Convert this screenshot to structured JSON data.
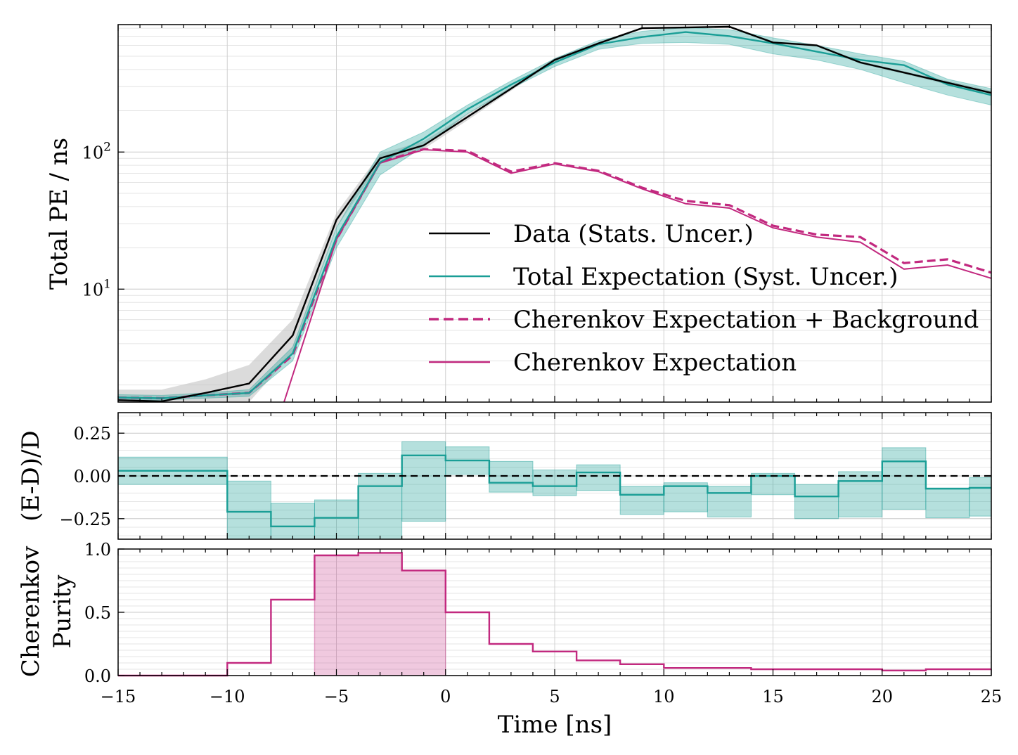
{
  "chart_data": [
    {
      "type": "line",
      "panel": "top",
      "ylabel": "Total PE / ns",
      "yscale": "log",
      "xlim": [
        -15,
        25
      ],
      "ylim": [
        1.5,
        850
      ],
      "ytick_labels": [
        "10^1",
        "10^2"
      ],
      "ytick_values": [
        10,
        100
      ],
      "grid": true,
      "legend_placement": "lower-right",
      "legend": [
        {
          "label": "Data (Stats. Uncer.)",
          "style": "solid",
          "color": "#000000"
        },
        {
          "label": "Total Expectation (Syst. Uncer.)",
          "style": "solid",
          "color": "#1a9e96"
        },
        {
          "label": "Cherenkov Expectation + Background",
          "style": "dashed",
          "color": "#c2297f"
        },
        {
          "label": "Cherenkov Expectation",
          "style": "solid",
          "color": "#c2297f"
        }
      ],
      "series": [
        {
          "name": "Data (Stats. Uncer.)",
          "color": "#000000",
          "x": [
            -15,
            -13,
            -11,
            -9,
            -7,
            -5,
            -3,
            -1,
            1,
            3,
            5,
            7,
            9,
            11,
            13,
            15,
            17,
            19,
            21,
            23,
            25
          ],
          "y": [
            1.55,
            1.52,
            1.75,
            2.05,
            4.6,
            32,
            90,
            112,
            180,
            290,
            470,
            620,
            800,
            810,
            820,
            630,
            600,
            450,
            380,
            320,
            270
          ],
          "band_low": [
            1.3,
            1.3,
            1.4,
            1.5,
            3.4,
            28,
            83,
            105,
            170,
            280,
            455,
            605,
            785,
            795,
            805,
            618,
            588,
            440,
            372,
            310,
            262
          ],
          "band_high": [
            1.85,
            1.85,
            2.2,
            2.8,
            6.0,
            36,
            97,
            120,
            190,
            300,
            485,
            635,
            815,
            825,
            835,
            642,
            612,
            460,
            388,
            330,
            280
          ]
        },
        {
          "name": "Total Expectation (Syst. Uncer.)",
          "color": "#1a9e96",
          "x": [
            -15,
            -13,
            -11,
            -9,
            -7,
            -5,
            -3,
            -1,
            1,
            3,
            5,
            7,
            9,
            11,
            13,
            15,
            17,
            19,
            21,
            23,
            25
          ],
          "y": [
            1.62,
            1.6,
            1.68,
            1.75,
            3.4,
            24,
            84,
            125,
            205,
            310,
            450,
            610,
            690,
            750,
            700,
            620,
            540,
            470,
            430,
            310,
            260
          ],
          "band_low": [
            1.55,
            1.55,
            1.6,
            1.65,
            3.0,
            20,
            68,
            110,
            190,
            290,
            420,
            560,
            620,
            630,
            610,
            520,
            470,
            400,
            320,
            260,
            220
          ],
          "band_high": [
            1.7,
            1.68,
            1.75,
            1.85,
            3.8,
            28,
            100,
            140,
            220,
            330,
            480,
            650,
            760,
            810,
            780,
            680,
            600,
            520,
            460,
            340,
            290
          ]
        },
        {
          "name": "Cherenkov Expectation + Background",
          "color": "#c2297f",
          "dashed": true,
          "x": [
            -15,
            -13,
            -11,
            -9,
            -7,
            -5,
            -3,
            -1,
            1,
            3,
            5,
            7,
            9,
            11,
            13,
            15,
            17,
            19,
            21,
            23,
            25
          ],
          "y": [
            1.62,
            1.6,
            1.68,
            1.75,
            3.3,
            23,
            84,
            105,
            102,
            72,
            83,
            73,
            55,
            44,
            41,
            29,
            25,
            24,
            15.5,
            16.5,
            13.2
          ]
        },
        {
          "name": "Cherenkov Expectation",
          "color": "#c2297f",
          "x": [
            -7.4,
            -5,
            -3,
            -1,
            1,
            3,
            5,
            7,
            9,
            11,
            13,
            15,
            17,
            19,
            21,
            23,
            25
          ],
          "y": [
            1.5,
            23,
            83,
            104,
            100,
            70,
            82,
            72,
            54,
            42,
            39,
            28,
            24,
            22,
            14,
            15,
            12
          ]
        }
      ]
    },
    {
      "type": "line",
      "panel": "middle",
      "ylabel": "(E-D)/D",
      "xlim": [
        -15,
        25
      ],
      "ylim": [
        -0.37,
        0.37
      ],
      "ytick_labels": [
        "−0.25",
        "0.00",
        "0.25"
      ],
      "ytick_values": [
        -0.25,
        0,
        0.25
      ],
      "reference_line": 0,
      "grid": true,
      "series": [
        {
          "name": "",
          "color": "#1a9e96",
          "step": true,
          "edges": [
            -15,
            -10,
            -8,
            -6,
            -4,
            -2,
            0,
            2,
            4,
            6,
            8,
            10,
            12,
            14,
            16,
            18,
            20,
            22,
            24,
            25
          ],
          "values": [
            0.03,
            -0.21,
            -0.295,
            -0.245,
            -0.06,
            0.12,
            0.09,
            -0.04,
            -0.06,
            0.02,
            -0.11,
            -0.06,
            -0.1,
            0.0,
            -0.12,
            -0.03,
            0.085,
            -0.075,
            -0.07
          ],
          "band_low": [
            -0.05,
            -0.37,
            -0.37,
            -0.37,
            -0.37,
            -0.265,
            0.01,
            -0.095,
            -0.115,
            -0.085,
            -0.225,
            -0.21,
            -0.24,
            -0.11,
            -0.25,
            -0.24,
            -0.195,
            -0.245,
            -0.235
          ],
          "band_high": [
            0.11,
            -0.03,
            -0.16,
            -0.14,
            0.015,
            0.2,
            0.17,
            0.085,
            0.035,
            0.065,
            -0.06,
            -0.04,
            -0.06,
            0.015,
            -0.05,
            0.025,
            0.165,
            -0.07,
            -0.01
          ]
        }
      ]
    },
    {
      "type": "line",
      "panel": "bottom",
      "ylabel": "Cherenkov Purity",
      "xlabel": "Time [ns]",
      "xlim": [
        -15,
        25
      ],
      "ylim": [
        0,
        1.0
      ],
      "ytick_labels": [
        "0.0",
        "0.5",
        "1.0"
      ],
      "ytick_values": [
        0,
        0.5,
        1.0
      ],
      "xtick_labels": [
        "−15",
        "−10",
        "−5",
        "0",
        "5",
        "10",
        "15",
        "20",
        "25"
      ],
      "xtick_values": [
        -15,
        -10,
        -5,
        0,
        5,
        10,
        15,
        20,
        25
      ],
      "grid": true,
      "shaded_region": [
        -6,
        0
      ],
      "series": [
        {
          "name": "",
          "color": "#c2297f",
          "step": true,
          "edges": [
            -15,
            -10,
            -8,
            -6,
            -4,
            -2,
            0,
            2,
            4,
            6,
            8,
            10,
            12,
            14,
            16,
            18,
            20,
            22,
            24,
            25
          ],
          "values": [
            0.0,
            0.1,
            0.6,
            0.95,
            0.97,
            0.83,
            0.5,
            0.25,
            0.19,
            0.12,
            0.09,
            0.06,
            0.06,
            0.05,
            0.05,
            0.05,
            0.04,
            0.05,
            0.05
          ]
        }
      ]
    }
  ]
}
